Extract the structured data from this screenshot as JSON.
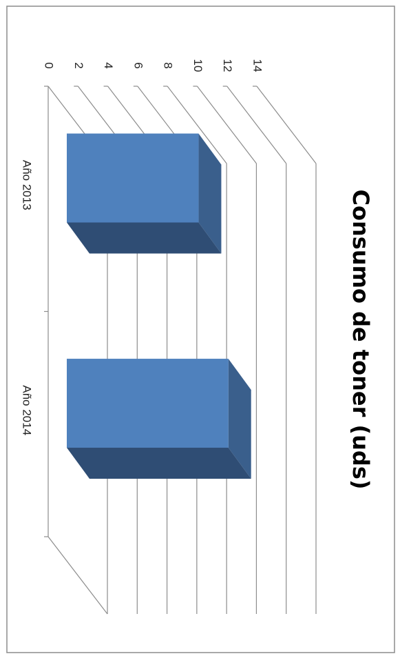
{
  "chart_data": {
    "type": "bar",
    "orientation": "rotated-90-clockwise",
    "title": "Consumo de toner (uds)",
    "categories": [
      "Año 2013",
      "Año 2014"
    ],
    "values": [
      10,
      12
    ],
    "ylim": [
      0,
      14
    ],
    "yticks": [
      "0",
      "2",
      "4",
      "6",
      "8",
      "10",
      "12",
      "14"
    ],
    "grid": true,
    "three_d": true,
    "legend": "none",
    "colors": {
      "bar_front": "#4f81bd",
      "bar_side": "#3a5f8c",
      "bar_top": "#2f4d74",
      "grid": "#8c8c8c",
      "frame": "#8c8c8c"
    }
  }
}
